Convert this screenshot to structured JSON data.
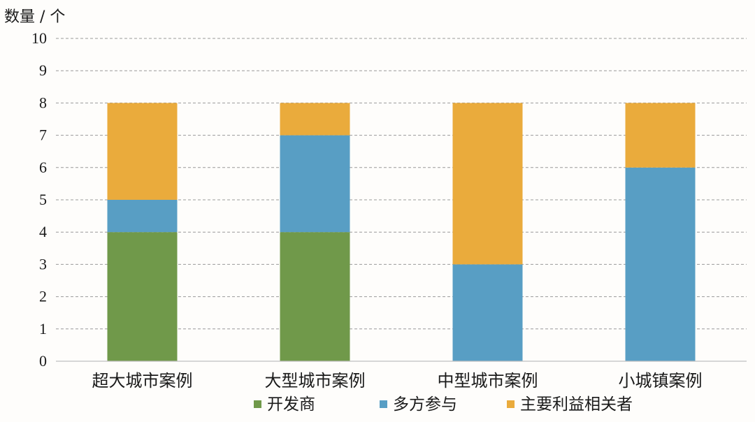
{
  "chart_data": {
    "type": "bar",
    "stacked": true,
    "ylabel": "数量 / 个",
    "ylim": [
      0,
      10
    ],
    "yticks": [
      "0",
      "1",
      "2",
      "3",
      "4",
      "5",
      "6",
      "7",
      "8",
      "9",
      "10"
    ],
    "grid": true,
    "legend_position": "bottom",
    "categories": [
      "超大城市案例",
      "大型城市案例",
      "中型城市案例",
      "小城镇案例"
    ],
    "series": [
      {
        "name": "开发商",
        "color": "#70994a",
        "values": [
          4,
          4,
          0,
          0
        ]
      },
      {
        "name": "多方参与",
        "color": "#589ec4",
        "values": [
          1,
          3,
          3,
          6
        ]
      },
      {
        "name": "主要利益相关者",
        "color": "#eaab3c",
        "values": [
          3,
          1,
          5,
          2
        ]
      }
    ]
  }
}
